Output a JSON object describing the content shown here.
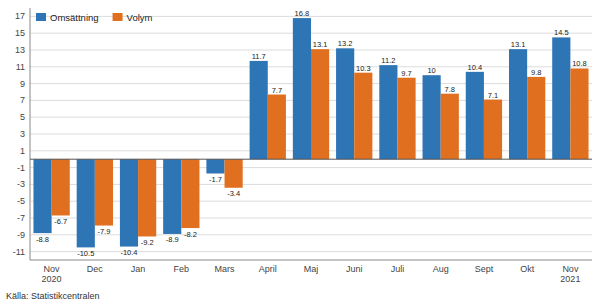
{
  "chart_data": {
    "type": "bar",
    "categories": [
      "Nov\n2020",
      "Dec",
      "Jan",
      "Feb",
      "Mars",
      "April",
      "Maj",
      "Juni",
      "Juli",
      "Aug",
      "Sept",
      "Okt",
      "Nov\n2021"
    ],
    "series": [
      {
        "name": "Omsättning",
        "color": "#2E75B6",
        "values": [
          -8.8,
          -10.5,
          -10.4,
          -8.9,
          -1.7,
          11.7,
          16.8,
          13.2,
          11.2,
          10.0,
          10.4,
          13.1,
          14.5
        ]
      },
      {
        "name": "Volym",
        "color": "#E07020",
        "values": [
          -6.7,
          -7.9,
          -9.2,
          -8.2,
          -3.4,
          7.7,
          13.1,
          10.3,
          9.7,
          7.8,
          7.1,
          9.8,
          10.8
        ]
      }
    ],
    "ylim": [
      -12,
      18
    ],
    "yticks": [
      -11,
      -9,
      -7,
      -5,
      -3,
      -1,
      1,
      3,
      5,
      7,
      9,
      11,
      13,
      15,
      17
    ],
    "grid": true,
    "legend": "upper left",
    "data_labels": true,
    "annotations": [
      "Källa: Statistikcentralen"
    ]
  }
}
